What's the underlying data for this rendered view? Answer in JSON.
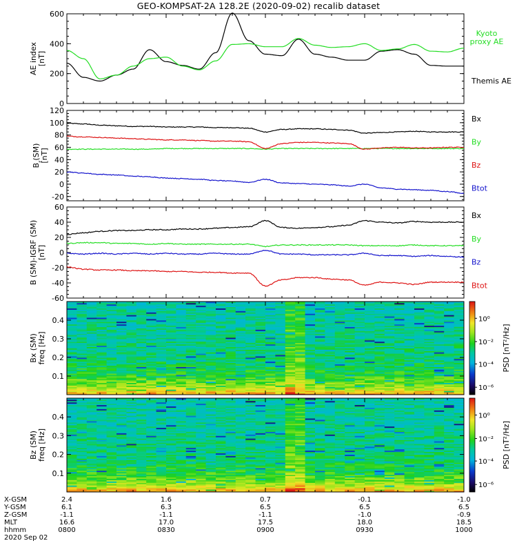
{
  "title": "GEO-KOMPSAT-2A 128.2E (2020-09-02) recalib dataset",
  "colors": {
    "black": "#000000",
    "green": "#22dd22",
    "red": "#dd1111",
    "blue": "#1111cc"
  },
  "chart_data": [
    {
      "type": "line",
      "panel": "ae",
      "ylabel": [
        "AE index",
        "[nT]"
      ],
      "yticks": [
        0,
        200,
        400,
        600
      ],
      "ylim": [
        0,
        600
      ],
      "x": [
        "0800",
        "0805",
        "0810",
        "0815",
        "0820",
        "0825",
        "0830",
        "0835",
        "0840",
        "0845",
        "0850",
        "0855",
        "0900",
        "0905",
        "0910",
        "0915",
        "0920",
        "0925",
        "0930",
        "0935",
        "0940",
        "0945",
        "0950",
        "0955",
        "1000"
      ],
      "series": [
        {
          "name": "Themis AE",
          "color": "#000000",
          "values": [
            270,
            175,
            150,
            190,
            230,
            360,
            280,
            255,
            230,
            340,
            605,
            420,
            330,
            320,
            430,
            330,
            310,
            290,
            290,
            350,
            360,
            330,
            255,
            250,
            250
          ]
        },
        {
          "name": "Kyoto\nproxy AE",
          "color": "#22dd22",
          "values": [
            355,
            300,
            165,
            190,
            250,
            300,
            310,
            250,
            225,
            285,
            395,
            400,
            380,
            380,
            435,
            390,
            375,
            380,
            400,
            355,
            365,
            395,
            350,
            345,
            370
          ]
        }
      ],
      "legend_order": [
        "Kyoto\nproxy AE",
        "Themis AE"
      ]
    },
    {
      "type": "line",
      "panel": "b",
      "ylabel": [
        "B",
        "r",
        "(SM)",
        "[nT]"
      ],
      "yticks": [
        -20,
        0,
        20,
        40,
        60,
        80,
        100,
        120
      ],
      "ylim": [
        -27,
        120
      ],
      "x": [
        "0800",
        "0805",
        "0810",
        "0815",
        "0820",
        "0825",
        "0830",
        "0835",
        "0840",
        "0845",
        "0850",
        "0855",
        "0900",
        "0905",
        "0910",
        "0915",
        "0920",
        "0925",
        "0930",
        "0935",
        "0940",
        "0945",
        "0950",
        "0955",
        "1000"
      ],
      "series": [
        {
          "name": "Bx",
          "color": "#000000",
          "values": [
            99,
            98,
            96,
            95,
            94,
            94,
            93,
            93,
            93,
            92,
            92,
            91,
            85,
            89,
            90,
            90,
            89,
            88,
            83,
            84,
            85,
            86,
            85,
            85,
            85
          ]
        },
        {
          "name": "By",
          "color": "#22dd22",
          "values": [
            57,
            57,
            57,
            57,
            57,
            57,
            58,
            58,
            58,
            58,
            58,
            58,
            57,
            58,
            58,
            58,
            58,
            58,
            58,
            58,
            58,
            58,
            58,
            58,
            58
          ]
        },
        {
          "name": "Bz",
          "color": "#dd1111",
          "values": [
            78,
            77,
            76,
            75,
            74,
            73,
            72,
            72,
            71,
            70,
            70,
            69,
            58,
            66,
            68,
            68,
            67,
            66,
            57,
            59,
            60,
            59,
            59,
            60,
            60
          ]
        },
        {
          "name": "Btot",
          "color": "#1111cc",
          "values": [
            20,
            18,
            16,
            15,
            13,
            12,
            10,
            9,
            8,
            6,
            5,
            3,
            8,
            2,
            1,
            0,
            -1,
            -3,
            0,
            -6,
            -8,
            -9,
            -10,
            -12,
            -15
          ]
        }
      ],
      "legend_order": [
        "Bx",
        "By",
        "Bz",
        "Btot"
      ]
    },
    {
      "type": "line",
      "panel": "db",
      "ylabel": [
        "B (SM)-IGRF (SM)",
        "[nT]"
      ],
      "yticks": [
        -60,
        -40,
        -20,
        0,
        20,
        40,
        60
      ],
      "ylim": [
        -60,
        60
      ],
      "x": [
        "0800",
        "0805",
        "0810",
        "0815",
        "0820",
        "0825",
        "0830",
        "0835",
        "0840",
        "0845",
        "0850",
        "0855",
        "0900",
        "0905",
        "0910",
        "0915",
        "0920",
        "0925",
        "0930",
        "0935",
        "0940",
        "0945",
        "0950",
        "0955",
        "1000"
      ],
      "series": [
        {
          "name": "Bx",
          "color": "#000000",
          "values": [
            24,
            26,
            28,
            29,
            29,
            30,
            30,
            31,
            31,
            32,
            33,
            34,
            42,
            33,
            32,
            33,
            34,
            36,
            42,
            40,
            39,
            41,
            40,
            40,
            40
          ]
        },
        {
          "name": "By",
          "color": "#22dd22",
          "values": [
            12,
            13,
            13,
            12,
            12,
            11,
            12,
            11,
            11,
            11,
            11,
            11,
            8,
            10,
            10,
            10,
            10,
            10,
            9,
            9,
            9,
            10,
            9,
            9,
            9
          ]
        },
        {
          "name": "Bz",
          "color": "#1111cc",
          "values": [
            -1,
            -2,
            -1,
            -2,
            -1,
            -2,
            -1,
            -2,
            -2,
            -1,
            -2,
            -2,
            3,
            -2,
            -2,
            -3,
            -3,
            -3,
            -1,
            -4,
            -4,
            -5,
            -4,
            -5,
            -6
          ]
        },
        {
          "name": "Btot",
          "color": "#dd1111",
          "values": [
            -19,
            -22,
            -23,
            -23,
            -24,
            -24,
            -25,
            -25,
            -26,
            -26,
            -27,
            -27,
            -44,
            -36,
            -33,
            -33,
            -35,
            -36,
            -43,
            -39,
            -40,
            -42,
            -39,
            -39,
            -39
          ]
        }
      ],
      "legend_order": [
        "Bx",
        "By",
        "Bz",
        "Btot"
      ]
    },
    {
      "type": "heatmap",
      "panel": "specx",
      "ylabel": [
        "Bx (SM)",
        "freq [Hz]"
      ],
      "yticks": [
        "0.1",
        "0.2",
        "0.3",
        "0.4"
      ],
      "ylim": [
        0,
        0.5
      ],
      "colorbar_label": "PSD [nT²/Hz]",
      "colorbar_ticks": [
        "10⁰",
        "10⁻²",
        "10⁻⁴",
        "10⁻⁶"
      ]
    },
    {
      "type": "heatmap",
      "panel": "specz",
      "ylabel": [
        "Bz (SM)",
        "freq [Hz]"
      ],
      "yticks": [
        "0.1",
        "0.2",
        "0.3",
        "0.4"
      ],
      "ylim": [
        0,
        0.5
      ],
      "colorbar_label": "PSD [nT²/Hz]",
      "colorbar_ticks": [
        "10⁰",
        "10⁻²",
        "10⁻⁴",
        "10⁻⁶"
      ]
    }
  ],
  "ephemeris": {
    "row_labels": [
      "X-GSM",
      "Y-GSM",
      "Z-GSM",
      "MLT",
      "hhmm"
    ],
    "date": "2020 Sep 02",
    "columns": [
      [
        "2.4",
        "6.1",
        "-1.1",
        "16.6",
        "0800"
      ],
      [
        "1.6",
        "6.3",
        "-1.1",
        "17.0",
        "0830"
      ],
      [
        "0.7",
        "6.5",
        "-1.1",
        "17.5",
        "0900"
      ],
      [
        "-0.1",
        "6.5",
        "-1.0",
        "18.0",
        "0930"
      ],
      [
        "-1.0",
        "6.5",
        "-0.9",
        "18.5",
        "1000"
      ]
    ]
  }
}
